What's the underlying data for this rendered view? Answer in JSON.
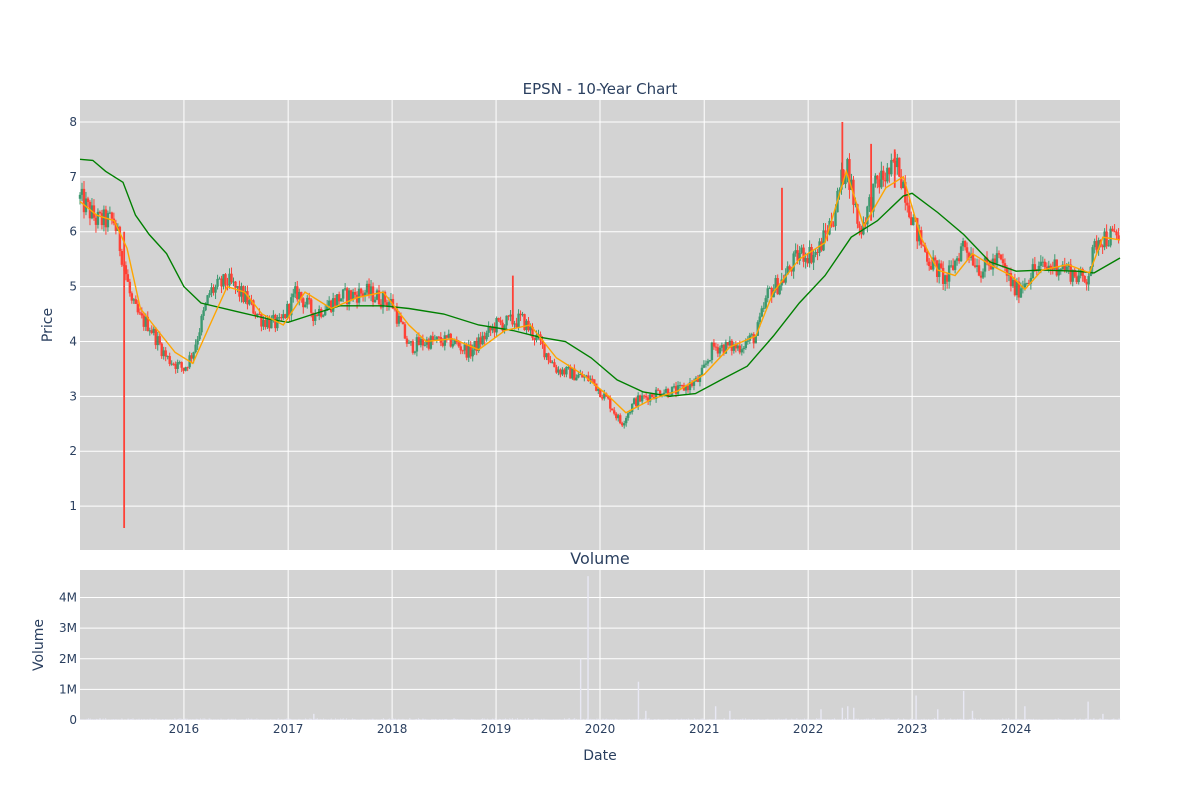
{
  "colors": {
    "plot_bg": "#d3d3d3",
    "grid": "#ffffff",
    "increasing": "#3d9970",
    "decreasing": "#ff4136",
    "ma_short": "#ffa500",
    "ma_long": "#008000",
    "volume": "#e8e8f4",
    "text": "#2a3f5f"
  },
  "chart_data": [
    {
      "type": "candlestick",
      "title": "EPSN - 10-Year Chart",
      "ylabel": "Price",
      "x_range": [
        "2015-01-01",
        "2024-12-31"
      ],
      "ylim": [
        0.2,
        8.4
      ],
      "yticks": [
        1,
        2,
        3,
        4,
        5,
        6,
        7,
        8
      ],
      "grid": true,
      "legend": "none",
      "price_path": [
        [
          "2015-01-01",
          6.6
        ],
        [
          "2015-03-01",
          6.2
        ],
        [
          "2015-05-01",
          6.2
        ],
        [
          "2015-06-01",
          5.5
        ],
        [
          "2015-07-01",
          4.7
        ],
        [
          "2015-08-01",
          4.4
        ],
        [
          "2015-09-01",
          4.3
        ],
        [
          "2015-11-01",
          3.7
        ],
        [
          "2016-01-01",
          3.5
        ],
        [
          "2016-02-01",
          3.8
        ],
        [
          "2016-04-01",
          4.9
        ],
        [
          "2016-06-01",
          5.1
        ],
        [
          "2016-08-01",
          4.8
        ],
        [
          "2016-10-01",
          4.4
        ],
        [
          "2016-12-01",
          4.3
        ],
        [
          "2017-02-01",
          4.9
        ],
        [
          "2017-04-01",
          4.5
        ],
        [
          "2017-07-01",
          4.8
        ],
        [
          "2017-10-01",
          4.9
        ],
        [
          "2018-01-01",
          4.7
        ],
        [
          "2018-03-01",
          3.9
        ],
        [
          "2018-05-01",
          4.0
        ],
        [
          "2018-08-01",
          4.0
        ],
        [
          "2018-10-01",
          3.8
        ],
        [
          "2019-01-01",
          4.3
        ],
        [
          "2019-04-01",
          4.4
        ],
        [
          "2019-06-01",
          4.0
        ],
        [
          "2019-08-01",
          3.5
        ],
        [
          "2019-10-01",
          3.4
        ],
        [
          "2019-12-01",
          3.3
        ],
        [
          "2020-02-01",
          2.9
        ],
        [
          "2020-03-15",
          2.5
        ],
        [
          "2020-05-01",
          2.9
        ],
        [
          "2020-08-01",
          3.1
        ],
        [
          "2020-10-01",
          3.1
        ],
        [
          "2020-12-15",
          3.3
        ],
        [
          "2021-02-01",
          3.9
        ],
        [
          "2021-05-01",
          3.9
        ],
        [
          "2021-07-01",
          4.1
        ],
        [
          "2021-08-15",
          4.9
        ],
        [
          "2021-10-01",
          5.1
        ],
        [
          "2021-12-01",
          5.6
        ],
        [
          "2022-02-01",
          5.6
        ],
        [
          "2022-04-01",
          6.3
        ],
        [
          "2022-05-15",
          7.3
        ],
        [
          "2022-07-01",
          6.0
        ],
        [
          "2022-09-01",
          6.9
        ],
        [
          "2022-11-15",
          7.2
        ],
        [
          "2023-01-15",
          6.0
        ],
        [
          "2023-03-01",
          5.5
        ],
        [
          "2023-05-01",
          5.1
        ],
        [
          "2023-07-01",
          5.8
        ],
        [
          "2023-09-01",
          5.3
        ],
        [
          "2023-11-01",
          5.5
        ],
        [
          "2024-01-01",
          4.9
        ],
        [
          "2024-03-01",
          5.3
        ],
        [
          "2024-06-01",
          5.4
        ],
        [
          "2024-09-01",
          5.1
        ],
        [
          "2024-10-15",
          5.9
        ],
        [
          "2024-12-31",
          5.9
        ]
      ],
      "outliers": [
        {
          "date": "2015-06-05",
          "low": 0.6,
          "high": 6.0
        },
        {
          "date": "2019-03-01",
          "low": 4.4,
          "high": 5.2
        },
        {
          "date": "2021-10-01",
          "low": 5.3,
          "high": 6.8
        },
        {
          "date": "2022-05-01",
          "low": 6.9,
          "high": 8.0
        },
        {
          "date": "2022-08-10",
          "low": 6.2,
          "high": 7.6
        },
        {
          "date": "2022-11-01",
          "low": 6.8,
          "high": 7.5
        }
      ],
      "series": [
        {
          "name": "short-ma",
          "values": [
            [
              "2015-01-01",
              6.55
            ],
            [
              "2015-03-01",
              6.3
            ],
            [
              "2015-05-01",
              6.2
            ],
            [
              "2015-06-15",
              5.7
            ],
            [
              "2015-08-01",
              4.6
            ],
            [
              "2015-10-01",
              4.2
            ],
            [
              "2015-12-01",
              3.8
            ],
            [
              "2016-02-01",
              3.6
            ],
            [
              "2016-04-01",
              4.3
            ],
            [
              "2016-06-01",
              5.0
            ],
            [
              "2016-08-01",
              4.9
            ],
            [
              "2016-10-01",
              4.5
            ],
            [
              "2016-12-15",
              4.3
            ],
            [
              "2017-03-01",
              4.9
            ],
            [
              "2017-06-01",
              4.6
            ],
            [
              "2017-09-01",
              4.8
            ],
            [
              "2017-12-01",
              4.9
            ],
            [
              "2018-03-01",
              4.3
            ],
            [
              "2018-05-01",
              4.0
            ],
            [
              "2018-08-01",
              4.05
            ],
            [
              "2018-11-01",
              3.85
            ],
            [
              "2019-02-01",
              4.2
            ],
            [
              "2019-05-01",
              4.3
            ],
            [
              "2019-08-01",
              3.7
            ],
            [
              "2019-11-01",
              3.4
            ],
            [
              "2020-02-01",
              3.0
            ],
            [
              "2020-04-01",
              2.7
            ],
            [
              "2020-07-01",
              2.95
            ],
            [
              "2020-10-01",
              3.1
            ],
            [
              "2021-01-01",
              3.4
            ],
            [
              "2021-04-01",
              3.9
            ],
            [
              "2021-07-01",
              4.1
            ],
            [
              "2021-09-01",
              4.9
            ],
            [
              "2021-12-01",
              5.5
            ],
            [
              "2022-03-01",
              5.8
            ],
            [
              "2022-05-15",
              7.1
            ],
            [
              "2022-07-15",
              6.1
            ],
            [
              "2022-10-01",
              6.8
            ],
            [
              "2022-12-01",
              7.0
            ],
            [
              "2023-02-01",
              5.9
            ],
            [
              "2023-04-01",
              5.3
            ],
            [
              "2023-06-01",
              5.2
            ],
            [
              "2023-08-01",
              5.6
            ],
            [
              "2023-10-01",
              5.4
            ],
            [
              "2023-12-15",
              5.2
            ],
            [
              "2024-02-01",
              4.95
            ],
            [
              "2024-04-01",
              5.3
            ],
            [
              "2024-07-01",
              5.4
            ],
            [
              "2024-09-15",
              5.25
            ],
            [
              "2024-11-01",
              5.9
            ],
            [
              "2024-12-31",
              5.85
            ]
          ]
        },
        {
          "name": "long-ma",
          "values": [
            [
              "2015-01-01",
              7.32
            ],
            [
              "2015-02-15",
              7.3
            ],
            [
              "2015-04-01",
              7.1
            ],
            [
              "2015-06-01",
              6.9
            ],
            [
              "2015-07-15",
              6.3
            ],
            [
              "2015-09-01",
              5.95
            ],
            [
              "2015-11-01",
              5.6
            ],
            [
              "2016-01-01",
              5.0
            ],
            [
              "2016-03-01",
              4.7
            ],
            [
              "2016-07-01",
              4.55
            ],
            [
              "2016-11-01",
              4.4
            ],
            [
              "2017-01-01",
              4.35
            ],
            [
              "2017-04-01",
              4.5
            ],
            [
              "2017-07-01",
              4.65
            ],
            [
              "2017-12-01",
              4.65
            ],
            [
              "2018-03-01",
              4.6
            ],
            [
              "2018-07-01",
              4.5
            ],
            [
              "2018-11-01",
              4.3
            ],
            [
              "2019-03-01",
              4.2
            ],
            [
              "2019-06-01",
              4.08
            ],
            [
              "2019-09-01",
              4.0
            ],
            [
              "2019-12-01",
              3.7
            ],
            [
              "2020-03-01",
              3.3
            ],
            [
              "2020-06-01",
              3.08
            ],
            [
              "2020-09-01",
              3.0
            ],
            [
              "2020-12-01",
              3.05
            ],
            [
              "2021-03-01",
              3.3
            ],
            [
              "2021-06-01",
              3.55
            ],
            [
              "2021-09-01",
              4.1
            ],
            [
              "2021-12-01",
              4.7
            ],
            [
              "2022-03-01",
              5.2
            ],
            [
              "2022-06-01",
              5.9
            ],
            [
              "2022-09-01",
              6.2
            ],
            [
              "2022-12-01",
              6.65
            ],
            [
              "2023-01-01",
              6.7
            ],
            [
              "2023-04-01",
              6.35
            ],
            [
              "2023-07-01",
              5.95
            ],
            [
              "2023-10-01",
              5.45
            ],
            [
              "2024-01-01",
              5.28
            ],
            [
              "2024-04-01",
              5.3
            ],
            [
              "2024-08-01",
              5.28
            ],
            [
              "2024-10-01",
              5.25
            ],
            [
              "2024-12-31",
              5.52
            ]
          ]
        }
      ]
    },
    {
      "type": "bar",
      "title": "Volume",
      "xlabel": "Date",
      "ylabel": "Volume",
      "ylim": [
        0,
        4900000
      ],
      "yticks": [
        0,
        1000000,
        2000000,
        3000000,
        4000000
      ],
      "ytick_labels": [
        "0",
        "1M",
        "2M",
        "3M",
        "4M"
      ],
      "xticks": [
        "2016",
        "2017",
        "2018",
        "2019",
        "2020",
        "2021",
        "2022",
        "2023",
        "2024"
      ],
      "spikes": [
        [
          "2017-04-01",
          200000
        ],
        [
          "2019-10-25",
          2000000
        ],
        [
          "2019-11-20",
          4700000
        ],
        [
          "2020-05-15",
          1250000
        ],
        [
          "2020-06-10",
          300000
        ],
        [
          "2021-02-10",
          450000
        ],
        [
          "2021-04-01",
          300000
        ],
        [
          "2022-02-15",
          350000
        ],
        [
          "2022-05-01",
          400000
        ],
        [
          "2022-05-20",
          450000
        ],
        [
          "2022-06-10",
          400000
        ],
        [
          "2023-01-15",
          800000
        ],
        [
          "2023-04-01",
          350000
        ],
        [
          "2023-07-01",
          950000
        ],
        [
          "2023-08-01",
          300000
        ],
        [
          "2024-02-01",
          450000
        ],
        [
          "2024-09-10",
          600000
        ],
        [
          "2024-11-01",
          200000
        ]
      ]
    }
  ]
}
